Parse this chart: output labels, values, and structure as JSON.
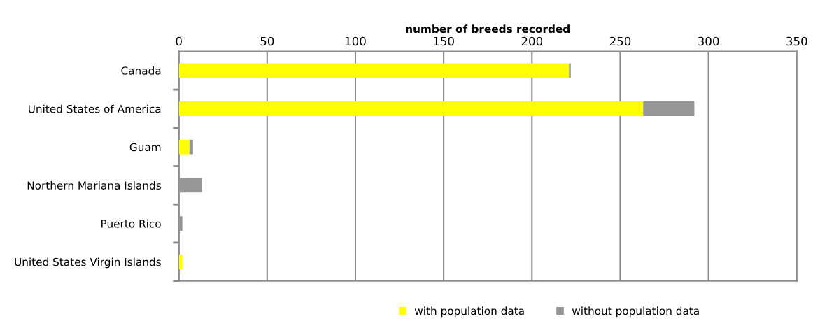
{
  "chart_data": {
    "type": "bar",
    "orientation": "horizontal",
    "stacked": true,
    "xlabel": "number of breeds recorded",
    "categories": [
      "Canada",
      "United States of America",
      "Guam",
      "Northern Mariana Islands",
      "Puerto Rico",
      "United States Virgin Islands"
    ],
    "series": [
      {
        "name": "with population data",
        "color": "#ffff00",
        "values": [
          221,
          263,
          6,
          0,
          0,
          2
        ]
      },
      {
        "name": "without population data",
        "color": "#969696",
        "values": [
          1,
          29,
          2,
          13,
          2,
          0
        ]
      }
    ],
    "xlim": [
      0,
      350
    ],
    "xticks": [
      0,
      50,
      100,
      150,
      200,
      250,
      300,
      350
    ],
    "grid": "x",
    "legend": "bottom"
  }
}
